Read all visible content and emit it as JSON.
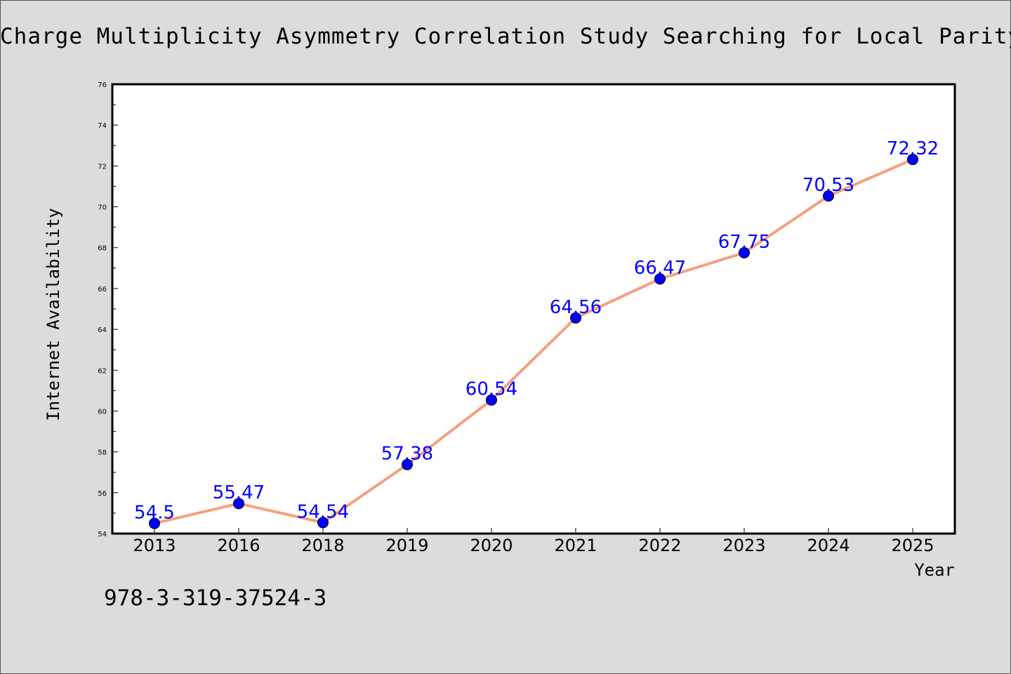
{
  "chart_data": {
    "type": "line",
    "title": "Charge Multiplicity Asymmetry Correlation Study Searching for Local Parity Viola",
    "xlabel": "Year",
    "ylabel": "Internet Availability",
    "categories": [
      "2013",
      "2016",
      "2018",
      "2019",
      "2020",
      "2021",
      "2022",
      "2023",
      "2024",
      "2025"
    ],
    "series": [
      {
        "values": [
          54.5,
          55.47,
          54.54,
          57.38,
          60.54,
          64.56,
          66.47,
          67.75,
          70.53,
          72.32
        ],
        "labels": [
          "54.5",
          "55.47",
          "54.54",
          "57.38",
          "60.54",
          "64.56",
          "66.47",
          "67.75",
          "70.53",
          "72.32"
        ]
      }
    ],
    "ylim": [
      54,
      76
    ],
    "yticks": [
      "54",
      "56",
      "58",
      "60",
      "62",
      "64",
      "66",
      "68",
      "70",
      "72",
      "74",
      "76"
    ],
    "grid": false,
    "legend": "none",
    "colors": {
      "line": "#f4a07f",
      "marker": "#0000ff",
      "label": "#0000ff",
      "plot_background": "#ffffff",
      "page_background": "#dcdcdc"
    }
  },
  "footer": {
    "code": "978-3-319-37524-3"
  }
}
